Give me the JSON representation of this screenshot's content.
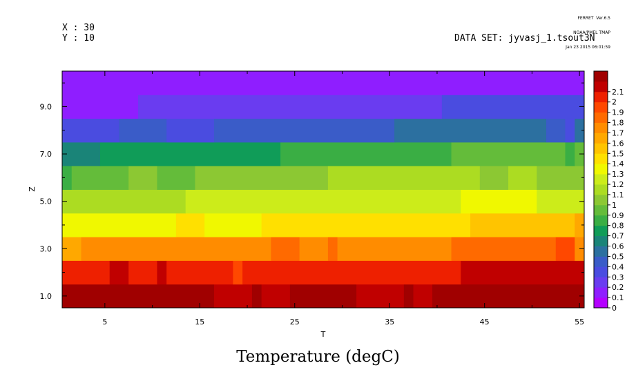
{
  "header": {
    "x_info": "X : 30",
    "y_info": "Y : 10",
    "dataset": "DATA SET: jyvasj_1.tsout3N",
    "ferret_lines": [
      "FERRET  Ver.6.5",
      "NOAA/PMEL TMAP",
      "Jan 23 2015 06:01:59"
    ]
  },
  "chart_data": {
    "type": "heatmap",
    "title": "Temperature (degC)",
    "xlabel": "T",
    "ylabel": "Z",
    "xlim": [
      0.5,
      55.5
    ],
    "ylim": [
      0.5,
      10.5
    ],
    "x_ticks": [
      5,
      15,
      25,
      35,
      45,
      55
    ],
    "x_tick_labels": [
      "5",
      "15",
      "25",
      "35",
      "45",
      "55"
    ],
    "x_minor_ticks": [
      10,
      20,
      30,
      40,
      50
    ],
    "y_ticks": [
      1,
      3,
      5,
      7,
      9
    ],
    "y_tick_labels": [
      "1.0",
      "3.0",
      "5.0",
      "7.0",
      "9.0"
    ],
    "y_minor_ticks": [
      2,
      4,
      6,
      8,
      10
    ],
    "z_levels": [
      0,
      0.1,
      0.2,
      0.3,
      0.4,
      0.5,
      0.6,
      0.7,
      0.8,
      0.9,
      1,
      1.1,
      1.2,
      1.3,
      1.4,
      1.5,
      1.6,
      1.7,
      1.8,
      1.9,
      2,
      2.1
    ],
    "colorbar_labels": [
      "0",
      "0.1",
      "0.2",
      "0.3",
      "0.4",
      "0.5",
      "0.6",
      "0.7",
      "0.8",
      "0.9",
      "1",
      "1.1",
      "1.2",
      "1.3",
      "1.4",
      "1.5",
      "1.6",
      "1.7",
      "1.8",
      "1.9",
      "2",
      "2.1"
    ],
    "colors": [
      "#b400ff",
      "#8f1eff",
      "#6a3cf0",
      "#4a4ce0",
      "#3a5cc8",
      "#2c70a0",
      "#1a8478",
      "#109c58",
      "#3aae44",
      "#64bc3a",
      "#8cc833",
      "#acdc22",
      "#ccec1a",
      "#f0f800",
      "#ffe000",
      "#ffc400",
      "#ffa800",
      "#ff8c00",
      "#ff6a00",
      "#ff4800",
      "#ee2000",
      "#c00000",
      "#a00000"
    ],
    "rows": [
      {
        "z": 1,
        "segments": [
          [
            0.5,
            16.5,
            2.15
          ],
          [
            16.5,
            20.5,
            2.05
          ],
          [
            20.5,
            21.5,
            2.12
          ],
          [
            21.5,
            24.5,
            2.05
          ],
          [
            24.5,
            31.5,
            2.12
          ],
          [
            31.5,
            36.5,
            2.05
          ],
          [
            36.5,
            37.5,
            2.12
          ],
          [
            37.5,
            39.5,
            2.05
          ],
          [
            39.5,
            47.5,
            2.12
          ],
          [
            47.5,
            48.5,
            2.2
          ],
          [
            48.5,
            55.5,
            2.12
          ]
        ]
      },
      {
        "z": 2,
        "segments": [
          [
            0.5,
            5.5,
            1.95
          ],
          [
            5.5,
            7.5,
            2.05
          ],
          [
            7.5,
            10.5,
            1.95
          ],
          [
            10.5,
            11.5,
            2.05
          ],
          [
            11.5,
            18.5,
            1.95
          ],
          [
            18.5,
            19.5,
            1.85
          ],
          [
            19.5,
            42.5,
            1.95
          ],
          [
            42.5,
            55.5,
            2.02
          ]
        ]
      },
      {
        "z": 3,
        "segments": [
          [
            0.5,
            2.5,
            1.55
          ],
          [
            2.5,
            22.5,
            1.65
          ],
          [
            22.5,
            25.5,
            1.75
          ],
          [
            25.5,
            28.5,
            1.65
          ],
          [
            28.5,
            29.5,
            1.75
          ],
          [
            29.5,
            41.5,
            1.65
          ],
          [
            41.5,
            52.5,
            1.75
          ],
          [
            52.5,
            54.5,
            1.85
          ],
          [
            54.5,
            55.5,
            1.65
          ]
        ]
      },
      {
        "z": 4,
        "segments": [
          [
            0.5,
            12.5,
            1.25
          ],
          [
            12.5,
            15.5,
            1.35
          ],
          [
            15.5,
            21.5,
            1.25
          ],
          [
            21.5,
            43.5,
            1.35
          ],
          [
            43.5,
            54.5,
            1.45
          ],
          [
            54.5,
            55.5,
            1.55
          ]
        ]
      },
      {
        "z": 5,
        "segments": [
          [
            0.5,
            13.5,
            1.05
          ],
          [
            13.5,
            42.5,
            1.15
          ],
          [
            42.5,
            50.5,
            1.25
          ],
          [
            50.5,
            55.5,
            1.15
          ]
        ]
      },
      {
        "z": 6,
        "segments": [
          [
            0.5,
            1.5,
            0.75
          ],
          [
            1.5,
            7.5,
            0.85
          ],
          [
            7.5,
            10.5,
            0.95
          ],
          [
            10.5,
            14.5,
            0.85
          ],
          [
            14.5,
            28.5,
            0.95
          ],
          [
            28.5,
            44.5,
            1.05
          ],
          [
            44.5,
            47.5,
            0.95
          ],
          [
            47.5,
            50.5,
            1.05
          ],
          [
            50.5,
            55.5,
            0.95
          ]
        ]
      },
      {
        "z": 7,
        "segments": [
          [
            0.5,
            4.5,
            0.55
          ],
          [
            4.5,
            23.5,
            0.65
          ],
          [
            23.5,
            41.5,
            0.75
          ],
          [
            41.5,
            53.5,
            0.85
          ],
          [
            53.5,
            54.5,
            0.75
          ],
          [
            54.5,
            55.5,
            0.85
          ]
        ]
      },
      {
        "z": 8,
        "segments": [
          [
            0.5,
            6.5,
            0.25
          ],
          [
            6.5,
            11.5,
            0.35
          ],
          [
            11.5,
            16.5,
            0.25
          ],
          [
            16.5,
            35.5,
            0.35
          ],
          [
            35.5,
            51.5,
            0.45
          ],
          [
            51.5,
            53.5,
            0.35
          ],
          [
            53.5,
            54.5,
            0.25
          ],
          [
            54.5,
            55.5,
            0.45
          ]
        ]
      },
      {
        "z": 9,
        "segments": [
          [
            0.5,
            8.5,
            0.05
          ],
          [
            8.5,
            16.5,
            0.15
          ],
          [
            16.5,
            40.5,
            0.15
          ],
          [
            40.5,
            55.5,
            0.25
          ]
        ]
      },
      {
        "z": 10,
        "segments": [
          [
            0.5,
            55.5,
            0.05
          ]
        ]
      }
    ]
  }
}
